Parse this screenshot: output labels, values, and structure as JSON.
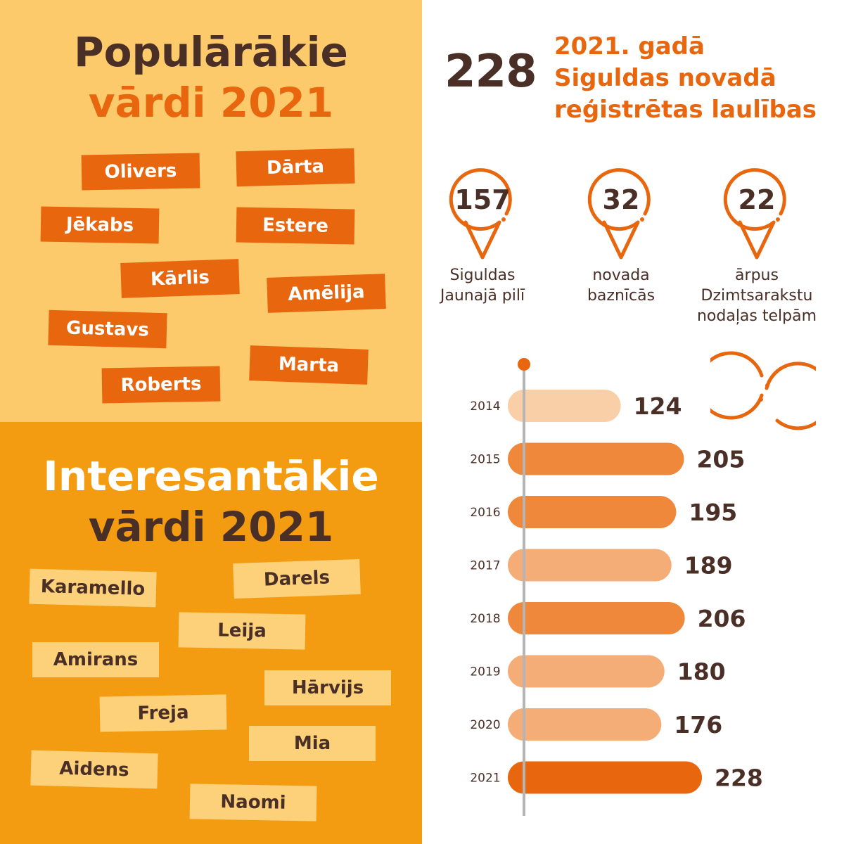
{
  "popular": {
    "title_line1": "Populārākie",
    "title_line2": "vārdi 2021",
    "names": [
      "Olivers",
      "Dārta",
      "Jēkabs",
      "Estere",
      "Kārlis",
      "Amēlija",
      "Gustavs",
      "Marta",
      "Roberts"
    ]
  },
  "interesting": {
    "title_line1": "Interesantākie",
    "title_line2": "vārdi 2021",
    "names": [
      "Karamello",
      "Darels",
      "Leija",
      "Amirans",
      "Hārvijs",
      "Freja",
      "Mia",
      "Aidens",
      "Naomi"
    ]
  },
  "marriages": {
    "total": "228",
    "caption_line1": "2021. gadā",
    "caption_line2": "Siguldas novadā",
    "caption_line3": "reģistrētas laulības",
    "locations": [
      {
        "value": "157",
        "label_line1": "Siguldas",
        "label_line2": "Jaunajā pilī",
        "label_line3": ""
      },
      {
        "value": "32",
        "label_line1": "novada",
        "label_line2": "baznīcās",
        "label_line3": ""
      },
      {
        "value": "22",
        "label_line1": "ārpus",
        "label_line2": "Dzimtsarakstu",
        "label_line3": "nodaļas telpām"
      }
    ],
    "pin_icon": "map-pin-icon",
    "rings_icon": "wedding-rings-icon"
  },
  "colors": {
    "dark_brown": "#4a2f27",
    "orange": "#e8660e",
    "light_orange_bg": "#fcc96b",
    "amber_bg": "#f39c12",
    "axis_gray": "#b5b5b5"
  },
  "chart_data": {
    "type": "bar",
    "orientation": "horizontal",
    "categories": [
      "2014",
      "2015",
      "2016",
      "2017",
      "2018",
      "2019",
      "2020",
      "2021"
    ],
    "values": [
      124,
      205,
      195,
      189,
      206,
      180,
      176,
      228
    ],
    "bar_colors": [
      "#f9cfa8",
      "#f0883c",
      "#f0883c",
      "#f5ad78",
      "#f0883c",
      "#f5ad78",
      "#f5ad78",
      "#e8660e"
    ],
    "xlim": [
      0,
      228
    ],
    "grid": false,
    "legend": "none"
  }
}
